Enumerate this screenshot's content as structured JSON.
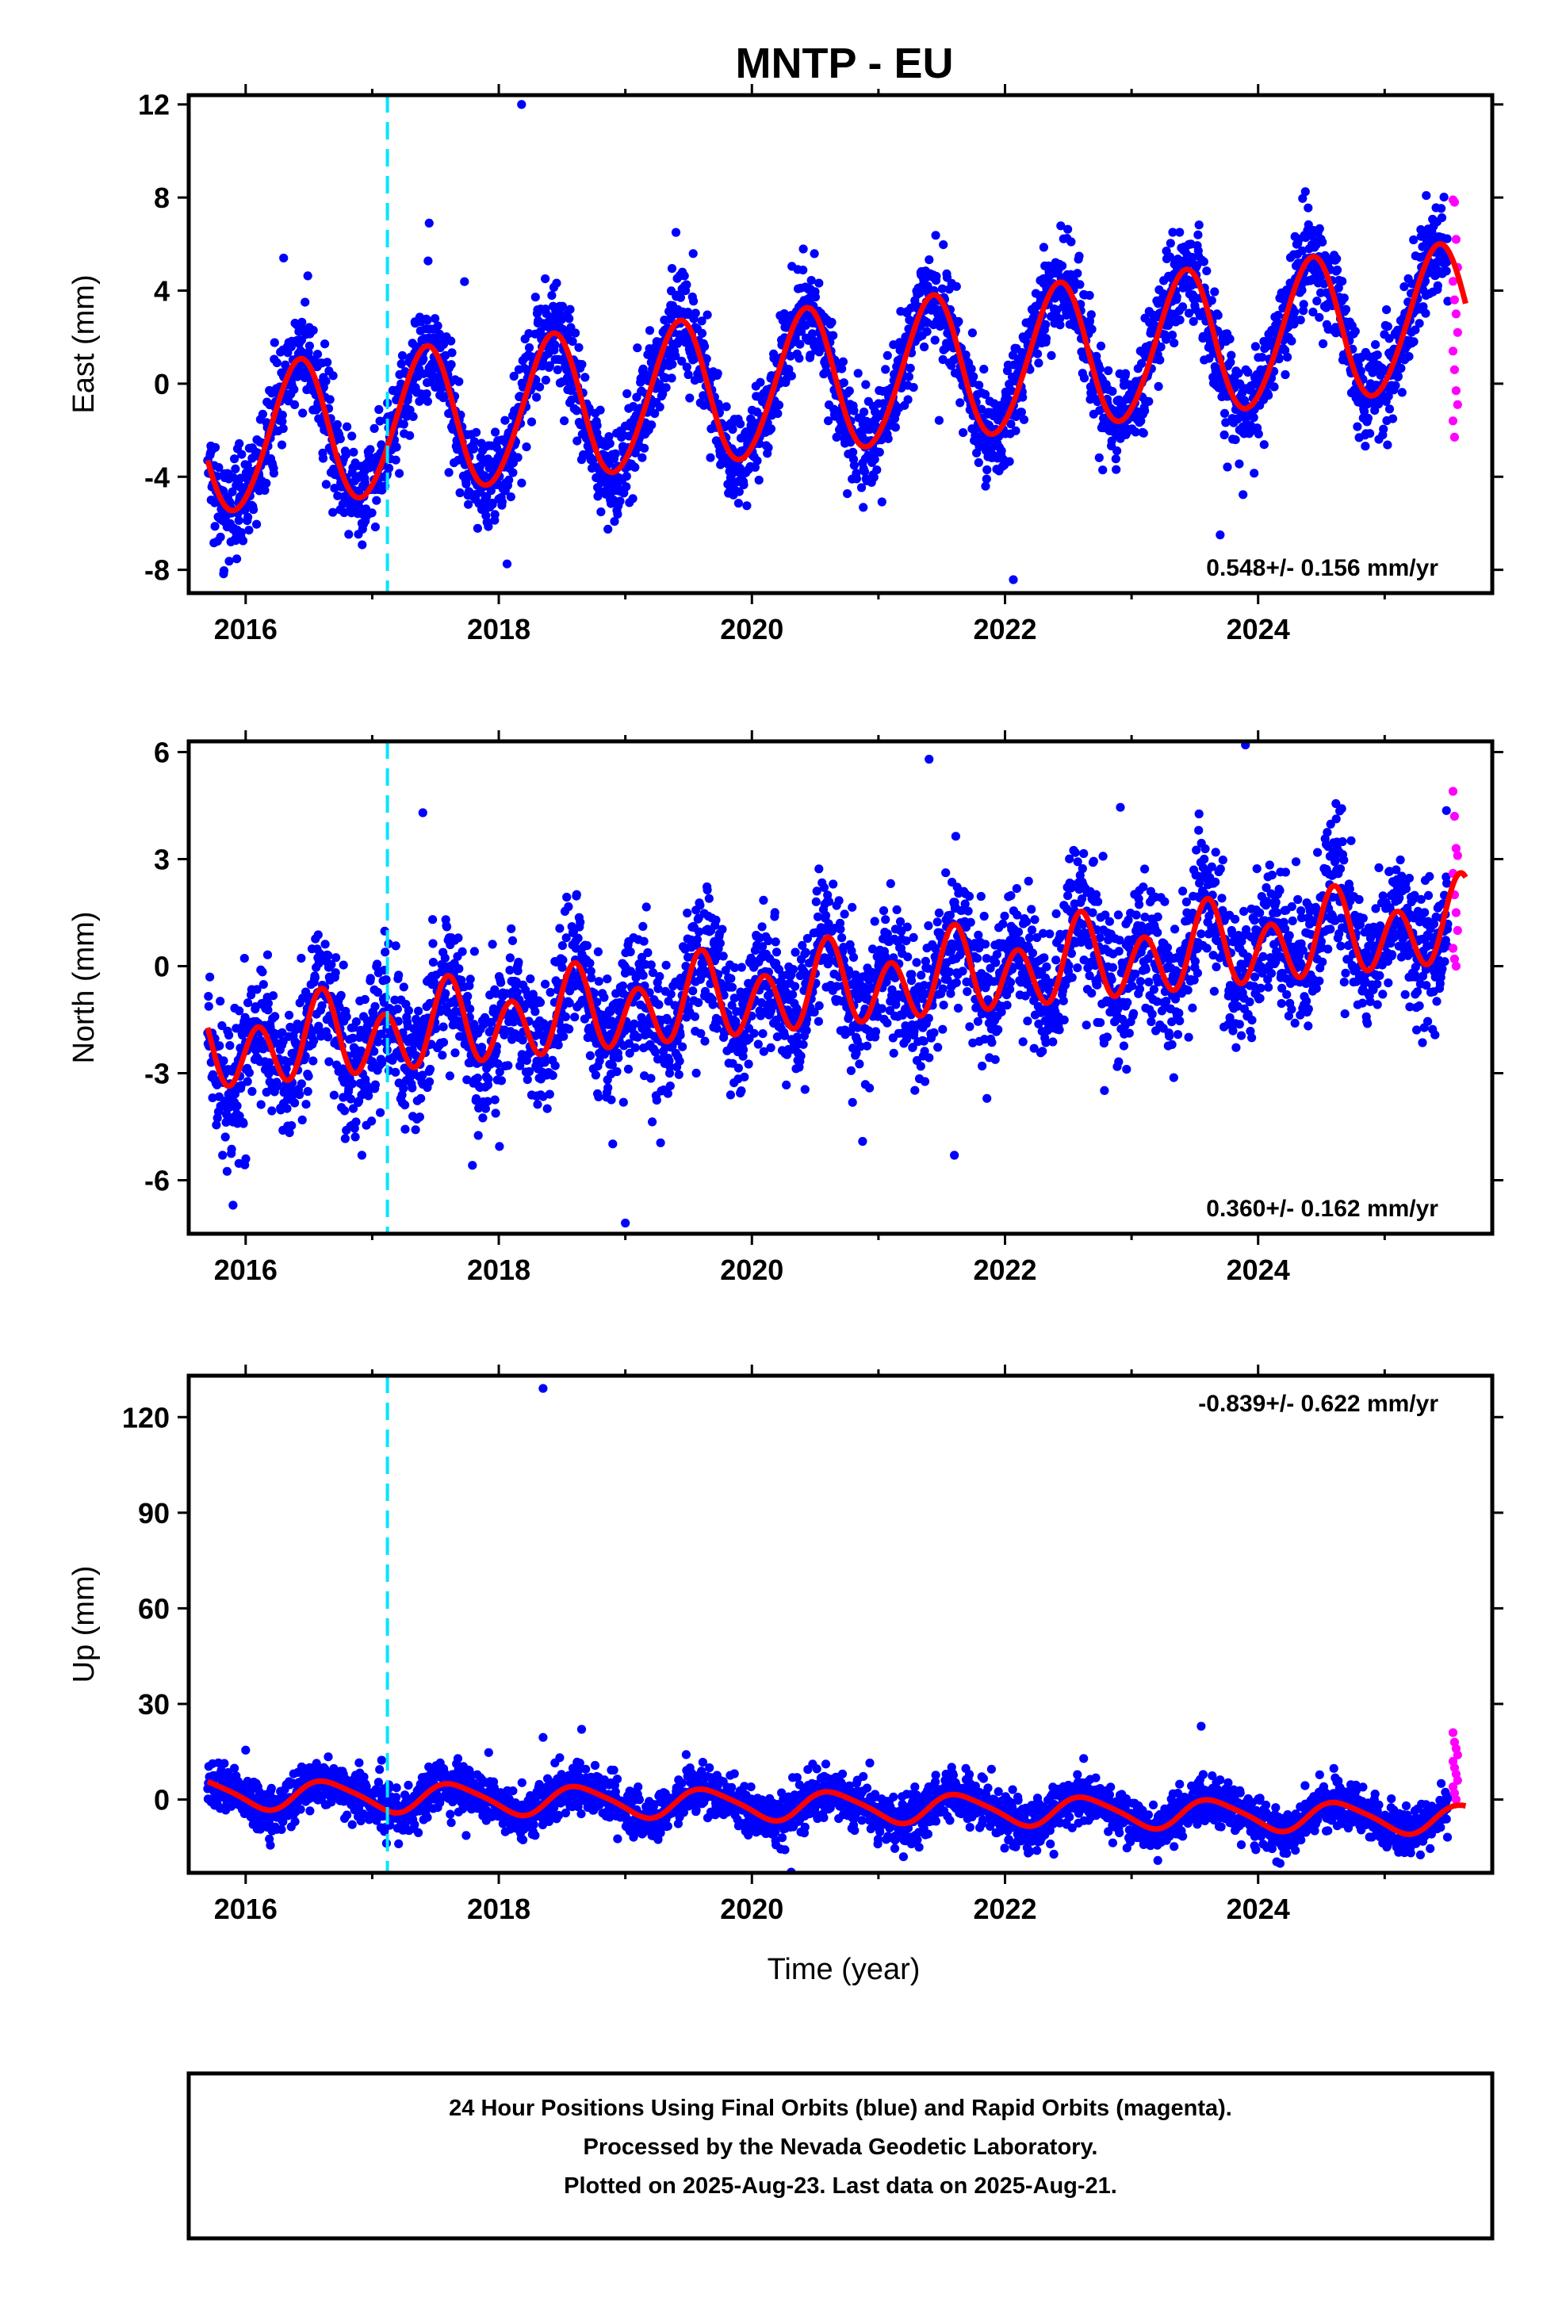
{
  "chart_data": {
    "type": "scatter",
    "title": "MNTP - EU",
    "xlabel": "Time (year)",
    "xlim": [
      2015.55,
      2025.85
    ],
    "x_ticks": [
      "2016",
      "2018",
      "2020",
      "2022",
      "2024"
    ],
    "x_tick_values": [
      2016,
      2018,
      2020,
      2022,
      2024
    ],
    "equipment_change_year": 2017.12,
    "data_start_year": 2015.7,
    "data_end_year": 2025.64,
    "rapid_orbit_start_year": 2025.5,
    "colors": {
      "final_orbits": "#0000ff",
      "rapid_orbits": "#ff00ff",
      "model_fit": "#ff0000",
      "equipment_change": "#00e5ff"
    },
    "panels": [
      {
        "name": "East",
        "ylabel": "East (mm)",
        "ylim": [
          -9,
          12.4
        ],
        "y_ticks": [
          "-8",
          "-4",
          "0",
          "4",
          "8",
          "12"
        ],
        "y_tick_values": [
          -8,
          -4,
          0,
          4,
          8,
          12
        ],
        "rate_label": "0.548+/- 0.156 mm/yr",
        "rate_position": "bottom-right",
        "model": {
          "offset": -2.55,
          "trend": 0.548,
          "annual_amp": 3.1,
          "annual_phase_peak": 0.42,
          "semiannual_amp": 0.2,
          "noise_sd": 1.05
        },
        "outliers": [
          [
            2018.18,
            12.0
          ],
          [
            2023.7,
            -6.5
          ],
          [
            2016.3,
            5.4
          ],
          [
            2017.45,
            6.9
          ],
          [
            2019.4,
            6.5
          ]
        ],
        "rapid_values": [
          7.9,
          7.8,
          6.2,
          5.0,
          4.4,
          3.6,
          3.0,
          2.2,
          1.4,
          0.6,
          -0.3,
          -0.9,
          -1.6,
          -2.3
        ]
      },
      {
        "name": "North",
        "ylabel": "North (mm)",
        "ylim": [
          -7.5,
          6.3
        ],
        "y_ticks": [
          "-6",
          "-3",
          "0",
          "3",
          "6"
        ],
        "y_tick_values": [
          -6,
          -3,
          0,
          3,
          6
        ],
        "rate_label": "0.360+/- 0.162 mm/yr",
        "rate_position": "bottom-right",
        "model": {
          "offset": -2.4,
          "trend": 0.36,
          "annual_amp": 0.45,
          "annual_phase_peak": 0.6,
          "semiannual_amp": 1.0,
          "semiannual_phase": 0.1,
          "noise_sd": 0.95
        },
        "outliers": [
          [
            2019.0,
            -7.2
          ],
          [
            2015.9,
            -6.7
          ],
          [
            2023.9,
            6.2
          ],
          [
            2021.4,
            5.8
          ],
          [
            2017.4,
            4.3
          ],
          [
            2021.6,
            -5.3
          ]
        ],
        "rapid_values": [
          4.9,
          4.2,
          3.3,
          3.1,
          2.6,
          2.0,
          1.5,
          1.0,
          0.5,
          0.2,
          0.0
        ]
      },
      {
        "name": "Up",
        "ylabel": "Up (mm)",
        "ylim": [
          -23,
          133
        ],
        "y_ticks": [
          "0",
          "30",
          "60",
          "90",
          "120"
        ],
        "y_tick_values": [
          0,
          30,
          60,
          90,
          120
        ],
        "rate_label": "-0.839+/- 0.622 mm/yr",
        "rate_position": "top-right",
        "model": {
          "offset": 2.0,
          "trend": -0.839,
          "annual_amp": 4.5,
          "annual_phase_peak": 0.65,
          "semiannual_amp": 0.8,
          "noise_sd": 3.6
        },
        "outliers": [
          [
            2018.35,
            129.0
          ],
          [
            2018.35,
            19.5
          ],
          [
            2023.55,
            23.0
          ],
          [
            2016.0,
            15.5
          ]
        ],
        "rapid_values": [
          21,
          18,
          16,
          14,
          12,
          10,
          8,
          6,
          4,
          2,
          0
        ]
      }
    ]
  },
  "footer": {
    "line1": "24 Hour Positions Using Final Orbits (blue) and Rapid Orbits (magenta).",
    "line2": "Processed by the Nevada Geodetic Laboratory.",
    "line3": "Plotted on 2025-Aug-23. Last data on 2025-Aug-21."
  }
}
